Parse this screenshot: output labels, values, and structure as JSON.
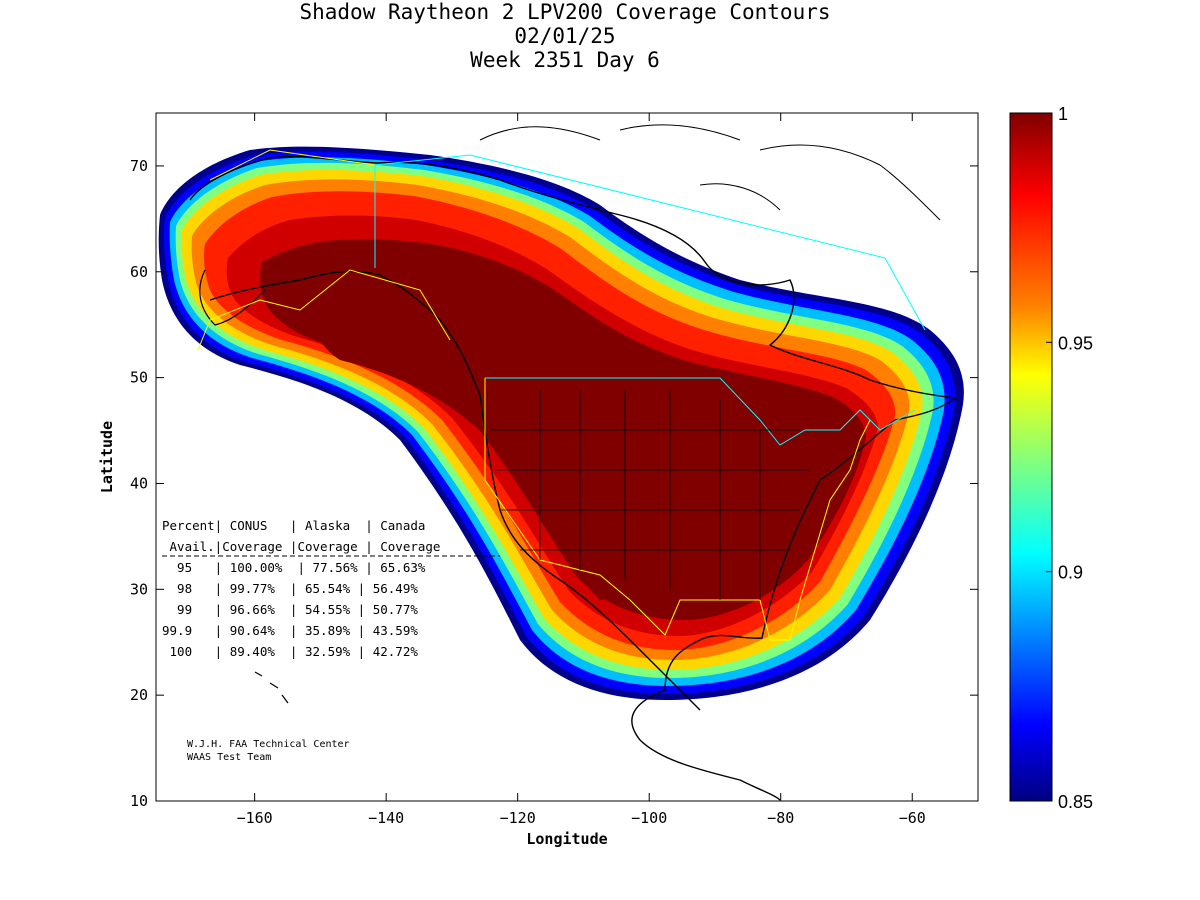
{
  "title": {
    "line1": "Shadow Raytheon 2 LPV200 Coverage Contours",
    "line2": "02/01/25",
    "line3": "Week 2351 Day 6"
  },
  "axes": {
    "xlabel": "Longitude",
    "ylabel": "Latitude",
    "xlim": [
      -175,
      -50
    ],
    "ylim": [
      10,
      75
    ],
    "xticks": [
      -160,
      -140,
      -120,
      -100,
      -80,
      -60
    ],
    "yticks": [
      10,
      20,
      30,
      40,
      50,
      60,
      70
    ]
  },
  "colorbar": {
    "range": [
      0.85,
      1
    ],
    "ticks": [
      {
        "value": 1,
        "label": "1"
      },
      {
        "value": 0.95,
        "label": "0.95"
      },
      {
        "value": 0.9,
        "label": "0.9"
      },
      {
        "value": 0.85,
        "label": "0.85"
      }
    ],
    "colors": {
      "max": "#800000",
      "red": "#ff0000",
      "orange": "#ff8000",
      "yellow": "#ffff00",
      "cyan": "#00ffff",
      "blue": "#0000ff",
      "min": "#000080"
    }
  },
  "table": {
    "header1": "Percent| CONUS   | Alaska  | Canada",
    "header2": " Avail.|Coverage |Coverage | Coverage",
    "rows": [
      "  95   | 100.00%  | 77.56% | 65.63%",
      "  98   | 99.77%  | 65.54% | 56.49%",
      "  99   | 96.66%  | 54.55% | 50.77%",
      "99.9   | 90.64%  | 35.89% | 43.59%",
      " 100   | 89.40%  | 32.59% | 42.72%"
    ]
  },
  "credit": {
    "line1": "W.J.H. FAA Technical Center",
    "line2": "WAAS Test Team"
  },
  "chart_data": {
    "type": "heatmap",
    "title": "Shadow Raytheon 2 LPV200 Coverage Contours",
    "xlabel": "Longitude",
    "ylabel": "Latitude",
    "xlim": [
      -175,
      -50
    ],
    "ylim": [
      10,
      75
    ],
    "value_range": [
      0.85,
      1
    ],
    "coverage_table": {
      "columns": [
        "Percent Avail.",
        "CONUS Coverage",
        "Alaska Coverage",
        "Canada Coverage"
      ],
      "rows": [
        [
          "95",
          "100.00%",
          "77.56%",
          "65.63%"
        ],
        [
          "98",
          "99.77%",
          "65.54%",
          "56.49%"
        ],
        [
          "99",
          "96.66%",
          "54.55%",
          "50.77%"
        ],
        [
          "99.9",
          "90.64%",
          "35.89%",
          "43.59%"
        ],
        [
          "100",
          "89.40%",
          "32.59%",
          "42.72%"
        ]
      ]
    }
  }
}
